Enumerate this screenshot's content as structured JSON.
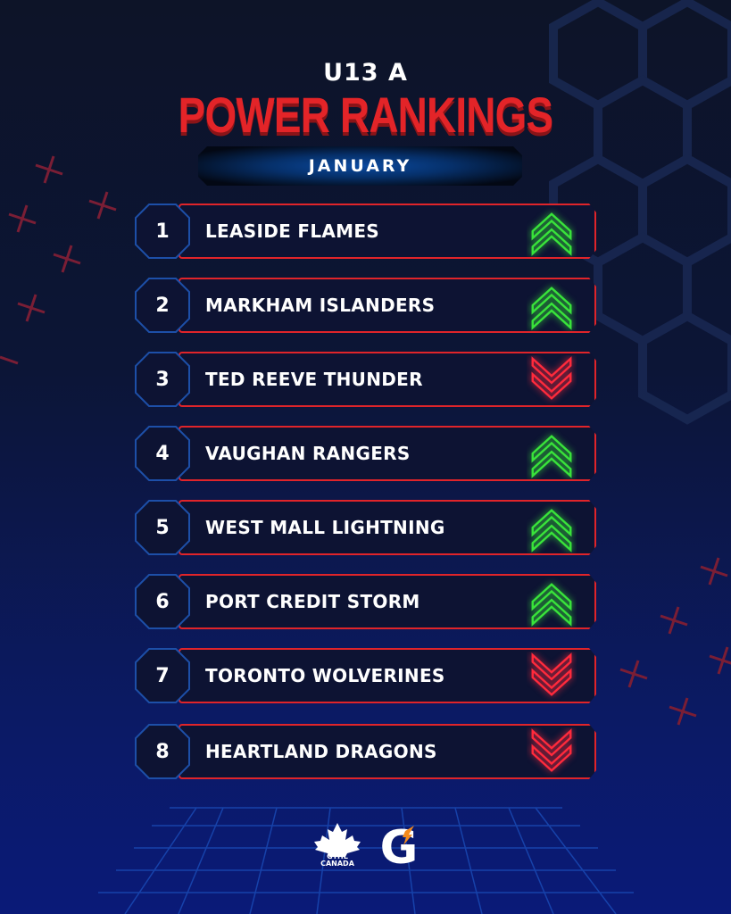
{
  "header": {
    "subtitle": "U13 A",
    "title": "POWER RANKINGS",
    "month": "JANUARY"
  },
  "colors": {
    "up": "#39e33a",
    "down": "#ff2a3c",
    "accent": "#e32428",
    "border_blue": "#1d4fa8"
  },
  "rankings": [
    {
      "rank": "1",
      "team": "LEASIDE FLAMES",
      "trend": "up"
    },
    {
      "rank": "2",
      "team": "MARKHAM ISLANDERS",
      "trend": "up"
    },
    {
      "rank": "3",
      "team": "TED REEVE THUNDER",
      "trend": "down"
    },
    {
      "rank": "4",
      "team": "VAUGHAN RANGERS",
      "trend": "up"
    },
    {
      "rank": "5",
      "team": "WEST MALL LIGHTNING",
      "trend": "up"
    },
    {
      "rank": "6",
      "team": "PORT CREDIT STORM",
      "trend": "up"
    },
    {
      "rank": "7",
      "team": "TORONTO WOLVERINES",
      "trend": "down"
    },
    {
      "rank": "8",
      "team": "HEARTLAND DRAGONS",
      "trend": "down"
    }
  ],
  "footer": {
    "logo_gthl": "GTHL CANADA",
    "logo_gatorade": "G"
  }
}
